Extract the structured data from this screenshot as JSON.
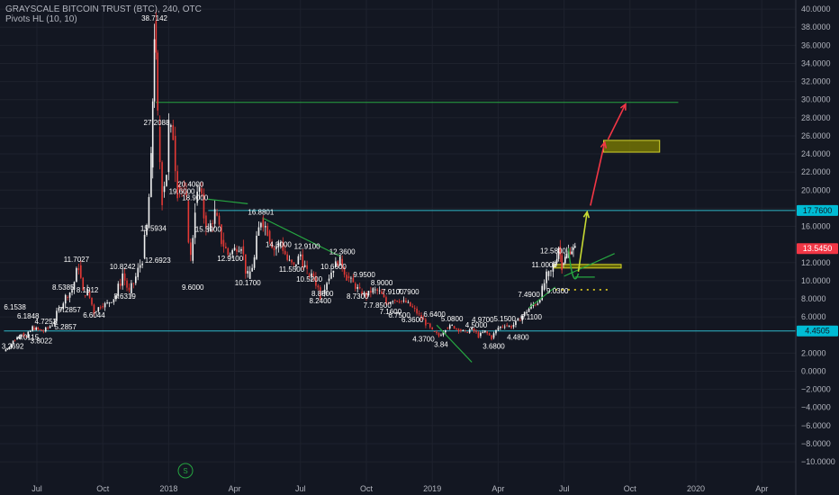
{
  "header": {
    "title": "GRAYSCALE BITCOIN TRUST (BTC), 240, OTC",
    "indicator": "Pivots HL (10, 10)"
  },
  "chart_data": {
    "type": "candlestick",
    "ylim": [
      -11,
      41
    ],
    "y_ticks": [
      "40.0000",
      "38.0000",
      "36.0000",
      "34.0000",
      "32.0000",
      "30.0000",
      "28.0000",
      "26.0000",
      "24.0000",
      "22.0000",
      "20.0000",
      "18.0000",
      "16.0000",
      "12.0000",
      "10.0000",
      "8.0000",
      "6.0000",
      "2.0000",
      "0.0000",
      "−2.0000",
      "−4.0000",
      "−6.0000",
      "−8.0000",
      "−10.0000"
    ],
    "y_tick_values": [
      40,
      38,
      36,
      34,
      32,
      30,
      28,
      26,
      24,
      22,
      20,
      18,
      16,
      12,
      10,
      8,
      6,
      2,
      0,
      -2,
      -4,
      -6,
      -8,
      -10
    ],
    "x_ticks": [
      "Jul",
      "Oct",
      "2018",
      "Apr",
      "Jul",
      "Oct",
      "2019",
      "Apr",
      "Jul",
      "Oct",
      "2020",
      "Apr"
    ],
    "x_tick_months": [
      0,
      3,
      6,
      9,
      12,
      15,
      18,
      21,
      24,
      27,
      30,
      33
    ],
    "price_tags": [
      {
        "label": "17.7600",
        "value": 17.76,
        "color": "#00bcd4"
      },
      {
        "label": "13.5450",
        "value": 13.545,
        "color": "#f23645"
      },
      {
        "label": "4.4505",
        "value": 4.4505,
        "color": "#00bcd4"
      }
    ],
    "pivot_labels": [
      {
        "text": "38.7142",
        "m": 5.35,
        "v": 38.71
      },
      {
        "text": "27.2088",
        "m": 5.45,
        "v": 27.2
      },
      {
        "text": "20.4000",
        "m": 7.0,
        "v": 20.4
      },
      {
        "text": "19.6000",
        "m": 6.6,
        "v": 19.6
      },
      {
        "text": "18.9000",
        "m": 7.2,
        "v": 18.9
      },
      {
        "text": "16.8801",
        "m": 10.2,
        "v": 17.3
      },
      {
        "text": "15.5934",
        "m": 5.3,
        "v": 15.5
      },
      {
        "text": "15.5900",
        "m": 7.8,
        "v": 15.4
      },
      {
        "text": "14.3000",
        "m": 11.0,
        "v": 13.7
      },
      {
        "text": "12.9100",
        "m": 12.3,
        "v": 13.5
      },
      {
        "text": "12.3600",
        "m": 13.9,
        "v": 12.9
      },
      {
        "text": "12.9100",
        "m": 8.8,
        "v": 12.2
      },
      {
        "text": "12.6923",
        "m": 5.5,
        "v": 12.0
      },
      {
        "text": "11.7027",
        "m": 1.8,
        "v": 12.1
      },
      {
        "text": "11.5500",
        "m": 11.6,
        "v": 11.0
      },
      {
        "text": "10.8242",
        "m": 3.9,
        "v": 11.3
      },
      {
        "text": "10.6600",
        "m": 13.5,
        "v": 11.3
      },
      {
        "text": "10.5200",
        "m": 12.4,
        "v": 9.9
      },
      {
        "text": "10.1700",
        "m": 9.6,
        "v": 9.5
      },
      {
        "text": "9.9500",
        "m": 14.9,
        "v": 10.4
      },
      {
        "text": "9.6000",
        "m": 7.1,
        "v": 9.0
      },
      {
        "text": "8.9000",
        "m": 15.7,
        "v": 9.5
      },
      {
        "text": "8.8500",
        "m": 13.0,
        "v": 8.3
      },
      {
        "text": "8.7300",
        "m": 14.6,
        "v": 8.0
      },
      {
        "text": "8.6319",
        "m": 4.0,
        "v": 8.0
      },
      {
        "text": "8.5385",
        "m": 1.2,
        "v": 9.0
      },
      {
        "text": "8.2400",
        "m": 12.9,
        "v": 7.5
      },
      {
        "text": "8.1912",
        "m": 2.3,
        "v": 8.7
      },
      {
        "text": "7.2857",
        "m": 1.5,
        "v": 6.5
      },
      {
        "text": "6.6044",
        "m": 2.6,
        "v": 5.9
      },
      {
        "text": "6.1538",
        "m": -1.0,
        "v": 6.8
      },
      {
        "text": "6.1848",
        "m": -0.4,
        "v": 5.8
      },
      {
        "text": "5.2857",
        "m": 1.3,
        "v": 4.6
      },
      {
        "text": "4.7253",
        "m": 0.4,
        "v": 5.2
      },
      {
        "text": "4.0115",
        "m": -0.4,
        "v": 3.5
      },
      {
        "text": "3.8022",
        "m": 0.2,
        "v": 3.1
      },
      {
        "text": "3.2692",
        "m": -1.1,
        "v": 2.5
      },
      {
        "text": "7.7.8500",
        "m": 15.5,
        "v": 7.0
      },
      {
        "text": "7.9100",
        "m": 16.2,
        "v": 8.5
      },
      {
        "text": "7.7900",
        "m": 16.9,
        "v": 8.5
      },
      {
        "text": "7.1600",
        "m": 16.1,
        "v": 6.3
      },
      {
        "text": "6.7500",
        "m": 16.5,
        "v": 5.9
      },
      {
        "text": "6.3600",
        "m": 17.1,
        "v": 5.4
      },
      {
        "text": "6.6400",
        "m": 18.1,
        "v": 6.0
      },
      {
        "text": "5.0800",
        "m": 18.9,
        "v": 5.5
      },
      {
        "text": "4.5000",
        "m": 20.0,
        "v": 4.8
      },
      {
        "text": "4.9700",
        "m": 20.3,
        "v": 5.4
      },
      {
        "text": "5.1500",
        "m": 21.3,
        "v": 5.5
      },
      {
        "text": "4.3700",
        "m": 17.6,
        "v": 3.3
      },
      {
        "text": "3.84",
        "m": 18.4,
        "v": 2.7
      },
      {
        "text": "3.6800",
        "m": 20.8,
        "v": 2.5
      },
      {
        "text": "4.4800",
        "m": 21.9,
        "v": 3.5
      },
      {
        "text": "6.1100",
        "m": 22.5,
        "v": 5.7
      },
      {
        "text": "7.4900",
        "m": 22.4,
        "v": 8.2
      },
      {
        "text": "9.0300",
        "m": 23.7,
        "v": 8.6
      },
      {
        "text": "11.0000",
        "m": 23.1,
        "v": 11.5
      },
      {
        "text": "12.5800",
        "m": 23.5,
        "v": 13.0
      }
    ],
    "series": [
      {
        "points": [
          [
            -1.5,
            2.2
          ],
          [
            -1.0,
            3.5
          ],
          [
            -0.7,
            4.2
          ],
          [
            -0.5,
            3.7
          ],
          [
            -0.2,
            4.8
          ],
          [
            0.3,
            4.4
          ],
          [
            0.7,
            5.2
          ],
          [
            1.0,
            6.8
          ],
          [
            1.3,
            8.2
          ],
          [
            1.6,
            9.0
          ],
          [
            1.9,
            11.7
          ],
          [
            2.1,
            8.4
          ],
          [
            2.3,
            8.9
          ],
          [
            2.6,
            6.6
          ],
          [
            2.9,
            7.2
          ],
          [
            3.2,
            7.5
          ],
          [
            3.6,
            8.3
          ],
          [
            3.9,
            10.8
          ],
          [
            4.2,
            8.6
          ],
          [
            4.5,
            10.4
          ],
          [
            4.8,
            12.5
          ],
          [
            5.0,
            15.8
          ],
          [
            5.2,
            22.5
          ],
          [
            5.35,
            38.7
          ],
          [
            5.5,
            27.0
          ],
          [
            5.7,
            19.8
          ],
          [
            5.9,
            22.0
          ],
          [
            6.0,
            27.0
          ],
          [
            6.2,
            26.0
          ],
          [
            6.4,
            20.5
          ],
          [
            6.6,
            20.0
          ],
          [
            6.8,
            18.8
          ],
          [
            7.0,
            12.2
          ],
          [
            7.2,
            18.6
          ],
          [
            7.4,
            20.2
          ],
          [
            7.6,
            17.2
          ],
          [
            7.8,
            15.5
          ],
          [
            8.1,
            17.5
          ],
          [
            8.4,
            14.5
          ],
          [
            8.7,
            12.9
          ],
          [
            9.0,
            13.5
          ],
          [
            9.3,
            13.8
          ],
          [
            9.6,
            10.2
          ],
          [
            9.9,
            12.4
          ],
          [
            10.2,
            17.0
          ],
          [
            10.5,
            15.5
          ],
          [
            10.8,
            13.5
          ],
          [
            11.1,
            14.3
          ],
          [
            11.4,
            12.3
          ],
          [
            11.7,
            11.6
          ],
          [
            12.0,
            12.9
          ],
          [
            12.3,
            10.7
          ],
          [
            12.6,
            10.5
          ],
          [
            12.9,
            8.5
          ],
          [
            13.2,
            10.0
          ],
          [
            13.5,
            11.5
          ],
          [
            13.8,
            12.4
          ],
          [
            14.1,
            10.5
          ],
          [
            14.4,
            9.7
          ],
          [
            14.7,
            8.8
          ],
          [
            15.0,
            8.4
          ],
          [
            15.3,
            9.0
          ],
          [
            15.6,
            8.8
          ],
          [
            15.9,
            7.5
          ],
          [
            16.2,
            7.9
          ],
          [
            16.5,
            7.8
          ],
          [
            16.8,
            7.6
          ],
          [
            17.1,
            7.0
          ],
          [
            17.4,
            6.2
          ],
          [
            17.7,
            5.3
          ],
          [
            18.0,
            4.4
          ],
          [
            18.3,
            3.9
          ],
          [
            18.6,
            4.8
          ],
          [
            18.9,
            5.0
          ],
          [
            19.2,
            4.6
          ],
          [
            19.5,
            4.3
          ],
          [
            19.8,
            4.7
          ],
          [
            20.1,
            3.9
          ],
          [
            20.4,
            4.4
          ],
          [
            20.7,
            3.7
          ],
          [
            21.0,
            4.8
          ],
          [
            21.3,
            5.1
          ],
          [
            21.6,
            4.9
          ],
          [
            21.9,
            5.6
          ],
          [
            22.2,
            6.4
          ],
          [
            22.5,
            7.2
          ],
          [
            22.8,
            7.6
          ],
          [
            23.0,
            9.0
          ],
          [
            23.2,
            10.5
          ],
          [
            23.4,
            11.0
          ],
          [
            23.6,
            12.0
          ],
          [
            23.75,
            13.8
          ],
          [
            23.9,
            11.8
          ],
          [
            24.05,
            12.5
          ],
          [
            24.2,
            13.2
          ],
          [
            24.35,
            13.4
          ],
          [
            24.5,
            13.55
          ]
        ]
      }
    ],
    "horizontal_lines": [
      {
        "value": 29.7,
        "from_m": 5.4,
        "to_m": 29.2,
        "color": "#26a641"
      },
      {
        "value": 17.76,
        "from_m": 7.8,
        "to_m": 34.8,
        "color": "#2eb8c9"
      },
      {
        "value": 4.4505,
        "from_m": -1.5,
        "to_m": 34.8,
        "color": "#2eb8c9"
      }
    ],
    "boxes": [
      {
        "m1": 25.8,
        "m2": 28.35,
        "v1": 24.2,
        "v2": 25.5
      },
      {
        "m1": 23.55,
        "m2": 26.6,
        "v1": 11.4,
        "v2": 11.8
      }
    ],
    "trend_lines": [
      {
        "m1": 7.8,
        "v1": 19.0,
        "m2": 9.6,
        "v2": 18.5,
        "color": "#26a641"
      },
      {
        "m1": 10.3,
        "v1": 16.9,
        "m2": 13.8,
        "v2": 12.7,
        "color": "#26a641"
      },
      {
        "m1": 18.2,
        "v1": 5.1,
        "m2": 19.8,
        "v2": 1.0,
        "color": "#26a641"
      },
      {
        "m1": 22.4,
        "v1": 7.0,
        "m2": 23.6,
        "v2": 9.3,
        "color": "#26a641"
      },
      {
        "m1": 24.0,
        "v1": 10.5,
        "m2": 26.3,
        "v2": 13.0,
        "color": "#26a641"
      },
      {
        "m1": 24.5,
        "v1": 10.4,
        "m2": 25.4,
        "v2": 10.4,
        "color": "#26a641"
      }
    ],
    "dotted_line": {
      "value": 9.0,
      "from_m": 23.6,
      "to_m": 26.1,
      "color": "#e6d21f"
    },
    "projection_arrows": [
      {
        "m1": 24.65,
        "v1": 11.0,
        "m2": 25.05,
        "v2": 17.6,
        "color": "#c7d933"
      },
      {
        "m1": 25.2,
        "v1": 18.3,
        "m2": 25.85,
        "v2": 25.3,
        "color": "#f23645"
      },
      {
        "m1": 26.0,
        "v1": 25.6,
        "m2": 26.8,
        "v2": 29.5,
        "color": "#f23645"
      }
    ],
    "scale_marker": "S"
  }
}
